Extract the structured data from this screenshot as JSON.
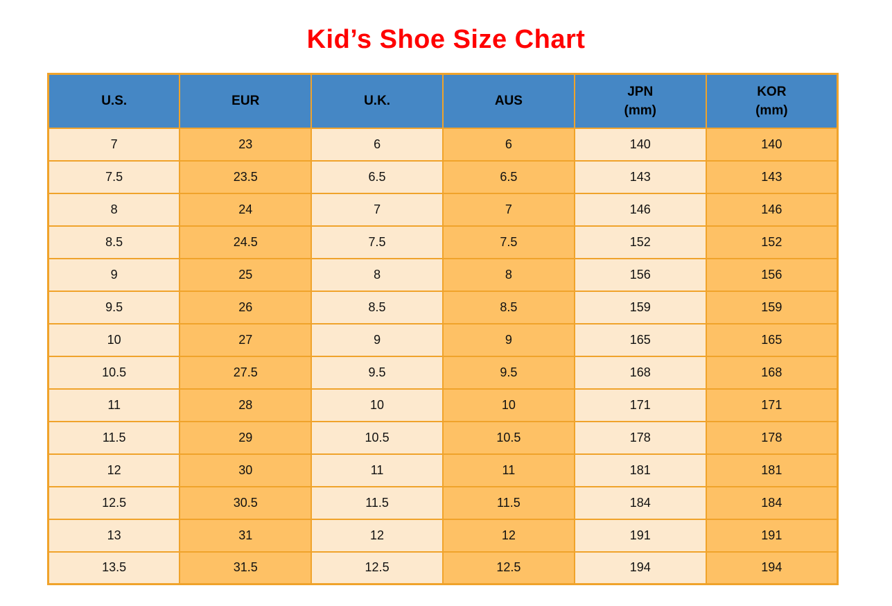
{
  "title": {
    "text": "Kid’s Shoe Size Chart",
    "color": "#ff0000"
  },
  "colors": {
    "header_bg": "#4587C5",
    "header_text": "#000000",
    "column_light": "#FDE9CE",
    "column_orange": "#FEC165",
    "border": "#F0A32B",
    "cell_text": "#111111",
    "page_bg": "#ffffff"
  },
  "chart_data": {
    "type": "table",
    "title": "Kid’s Shoe Size Chart",
    "headers": [
      {
        "lines": [
          "U.S."
        ]
      },
      {
        "lines": [
          "EUR"
        ]
      },
      {
        "lines": [
          "U.K."
        ]
      },
      {
        "lines": [
          "AUS"
        ]
      },
      {
        "lines": [
          "JPN",
          "(mm)"
        ]
      },
      {
        "lines": [
          "KOR",
          "(mm)"
        ]
      }
    ],
    "column_shades": [
      "light",
      "orange",
      "light",
      "orange",
      "light",
      "orange"
    ],
    "rows": [
      [
        "7",
        "23",
        "6",
        "6",
        "140",
        "140"
      ],
      [
        "7.5",
        "23.5",
        "6.5",
        "6.5",
        "143",
        "143"
      ],
      [
        "8",
        "24",
        "7",
        "7",
        "146",
        "146"
      ],
      [
        "8.5",
        "24.5",
        "7.5",
        "7.5",
        "152",
        "152"
      ],
      [
        "9",
        "25",
        "8",
        "8",
        "156",
        "156"
      ],
      [
        "9.5",
        "26",
        "8.5",
        "8.5",
        "159",
        "159"
      ],
      [
        "10",
        "27",
        "9",
        "9",
        "165",
        "165"
      ],
      [
        "10.5",
        "27.5",
        "9.5",
        "9.5",
        "168",
        "168"
      ],
      [
        "11",
        "28",
        "10",
        "10",
        "171",
        "171"
      ],
      [
        "11.5",
        "29",
        "10.5",
        "10.5",
        "178",
        "178"
      ],
      [
        "12",
        "30",
        "11",
        "11",
        "181",
        "181"
      ],
      [
        "12.5",
        "30.5",
        "11.5",
        "11.5",
        "184",
        "184"
      ],
      [
        "13",
        "31",
        "12",
        "12",
        "191",
        "191"
      ],
      [
        "13.5",
        "31.5",
        "12.5",
        "12.5",
        "194",
        "194"
      ]
    ]
  }
}
